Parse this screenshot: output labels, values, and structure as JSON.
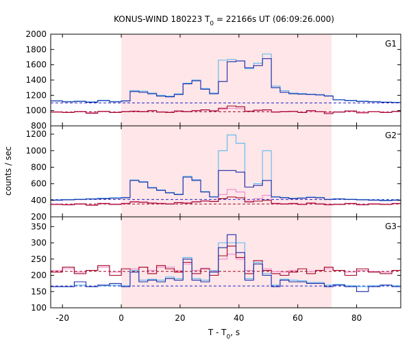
{
  "chart_data": {
    "type": "line",
    "title": "KONUS-WIND 180223 T0 = 22166s UT (06:09:26.000)",
    "title_parts": {
      "prefix": "KONUS-WIND 180223 T",
      "subscript": "0",
      "suffix": " = 22166s UT (06:09:26.000)"
    },
    "xlabel": "T - T0, s",
    "xlabel_parts": {
      "prefix": "T - T",
      "subscript": "0",
      "suffix": ", s"
    },
    "ylabel": "counts / sec",
    "xlim": [
      -24,
      95
    ],
    "x_ticks": [
      -20,
      0,
      20,
      40,
      60,
      80
    ],
    "shaded_interval": {
      "x": [
        0,
        71.5
      ],
      "color": "#ffe6e8"
    },
    "grid": false,
    "colors": {
      "dark_blue": "#1a2aa8",
      "light_blue": "#5bb8ee",
      "dark_red": "#a00020",
      "pink": "#ee88cc",
      "bg_dash_blue": "#2222cc",
      "bg_dash_red": "#a00020"
    },
    "panels": [
      {
        "label": "G1",
        "ylim": [
          800,
          2000
        ],
        "y_ticks": [
          800,
          1000,
          1200,
          1400,
          1600,
          1800,
          2000
        ],
        "background_levels": {
          "blue": 1100,
          "red": 985
        },
        "series": [
          {
            "style": "dark_blue",
            "x": [
              -24,
              -20,
              -16,
              -12,
              -8,
              -4,
              0,
              3,
              6,
              9,
              12,
              15,
              18,
              21,
              24,
              27,
              30,
              33,
              36,
              39,
              42,
              45,
              48,
              51,
              54,
              57,
              60,
              63,
              66,
              69,
              72,
              76,
              80,
              84,
              88,
              92
            ],
            "y": [
              1125,
              1115,
              1120,
              1110,
              1130,
              1115,
              1125,
              1250,
              1240,
              1220,
              1190,
              1180,
              1210,
              1350,
              1390,
              1280,
              1220,
              1380,
              1640,
              1650,
              1560,
              1590,
              1680,
              1300,
              1240,
              1220,
              1215,
              1210,
              1205,
              1190,
              1140,
              1130,
              1120,
              1115,
              1110,
              1105
            ]
          },
          {
            "style": "light_blue",
            "x": [
              -24,
              -20,
              -16,
              -12,
              -8,
              -4,
              0,
              3,
              6,
              9,
              12,
              15,
              18,
              21,
              24,
              27,
              30,
              33,
              36,
              39,
              42,
              45,
              48,
              51,
              54,
              57,
              60,
              63,
              66,
              69,
              72,
              76,
              80,
              84,
              88,
              92
            ],
            "y": [
              1130,
              1120,
              1125,
              1115,
              1135,
              1120,
              1130,
              1260,
              1255,
              1230,
              1200,
              1190,
              1220,
              1360,
              1400,
              1290,
              1230,
              1660,
              1670,
              1650,
              1550,
              1620,
              1740,
              1320,
              1260,
              1230,
              1225,
              1215,
              1210,
              1195,
              1145,
              1135,
              1125,
              1120,
              1112,
              1108
            ]
          },
          {
            "style": "dark_red",
            "x": [
              -24,
              -20,
              -16,
              -12,
              -8,
              -4,
              0,
              3,
              6,
              9,
              12,
              15,
              18,
              21,
              24,
              27,
              30,
              33,
              36,
              39,
              42,
              45,
              48,
              51,
              54,
              57,
              60,
              63,
              66,
              69,
              72,
              76,
              80,
              84,
              88,
              92
            ],
            "y": [
              980,
              975,
              985,
              965,
              990,
              975,
              985,
              990,
              985,
              1000,
              980,
              975,
              995,
              985,
              1000,
              1010,
              995,
              1030,
              1060,
              1050,
              990,
              1005,
              1010,
              980,
              985,
              990,
              975,
              1000,
              985,
              960,
              980,
              995,
              970,
              985,
              975,
              990
            ]
          },
          {
            "style": "pink",
            "x": [
              -24,
              -20,
              -16,
              -12,
              -8,
              -4,
              0,
              3,
              6,
              9,
              12,
              15,
              18,
              21,
              24,
              27,
              30,
              33,
              36,
              39,
              42,
              45,
              48,
              51,
              54,
              57,
              60,
              63,
              66,
              69,
              72,
              76,
              80,
              84,
              88,
              92
            ],
            "y": [
              985,
              980,
              990,
              975,
              985,
              980,
              990,
              995,
              990,
              995,
              985,
              980,
              990,
              990,
              995,
              1005,
              1000,
              1015,
              1030,
              1025,
              995,
              1000,
              1005,
              985,
              990,
              985,
              980,
              990,
              985,
              975,
              985,
              990,
              980,
              985,
              980,
              985
            ]
          }
        ]
      },
      {
        "label": "G2",
        "ylim": [
          200,
          1300
        ],
        "y_ticks": [
          200,
          400,
          600,
          800,
          1000,
          1200
        ],
        "background_levels": {
          "blue": 410,
          "red": 355
        },
        "series": [
          {
            "style": "dark_blue",
            "x": [
              -24,
              -20,
              -16,
              -12,
              -8,
              -4,
              0,
              3,
              6,
              9,
              12,
              15,
              18,
              21,
              24,
              27,
              30,
              33,
              36,
              39,
              42,
              45,
              48,
              51,
              54,
              57,
              60,
              63,
              66,
              69,
              72,
              76,
              80,
              84,
              88,
              92
            ],
            "y": [
              400,
              405,
              410,
              415,
              420,
              425,
              430,
              640,
              620,
              550,
              520,
              490,
              470,
              680,
              640,
              500,
              440,
              760,
              760,
              740,
              560,
              580,
              640,
              440,
              430,
              420,
              425,
              435,
              430,
              410,
              415,
              410,
              405,
              400,
              395,
              400
            ]
          },
          {
            "style": "light_blue",
            "x": [
              -24,
              -20,
              -16,
              -12,
              -8,
              -4,
              0,
              3,
              6,
              9,
              12,
              15,
              18,
              21,
              24,
              27,
              30,
              33,
              36,
              39,
              42,
              45,
              48,
              51,
              54,
              57,
              60,
              63,
              66,
              69,
              72,
              76,
              80,
              84,
              88,
              92
            ],
            "y": [
              405,
              410,
              415,
              420,
              425,
              430,
              435,
              645,
              625,
              555,
              525,
              495,
              475,
              690,
              650,
              505,
              445,
              1000,
              1190,
              1090,
              560,
              600,
              1000,
              445,
              435,
              425,
              430,
              440,
              435,
              415,
              420,
              415,
              410,
              405,
              400,
              405
            ]
          },
          {
            "style": "dark_red",
            "x": [
              -24,
              -20,
              -16,
              -12,
              -8,
              -4,
              0,
              3,
              6,
              9,
              12,
              15,
              18,
              21,
              24,
              27,
              30,
              33,
              36,
              39,
              42,
              45,
              48,
              51,
              54,
              57,
              60,
              63,
              66,
              69,
              72,
              76,
              80,
              84,
              88,
              92
            ],
            "y": [
              350,
              345,
              355,
              340,
              360,
              350,
              360,
              380,
              375,
              365,
              360,
              355,
              370,
              365,
              380,
              390,
              385,
              420,
              440,
              430,
              380,
              390,
              400,
              360,
              355,
              360,
              350,
              365,
              355,
              345,
              350,
              360,
              345,
              355,
              350,
              360
            ]
          },
          {
            "style": "pink",
            "x": [
              -24,
              -20,
              -16,
              -12,
              -8,
              -4,
              0,
              3,
              6,
              9,
              12,
              15,
              18,
              21,
              24,
              27,
              30,
              33,
              36,
              39,
              42,
              45,
              48,
              51,
              54,
              57,
              60,
              63,
              66,
              69,
              72,
              76,
              80,
              84,
              88,
              92
            ],
            "y": [
              355,
              350,
              360,
              345,
              365,
              355,
              365,
              385,
              380,
              370,
              365,
              360,
              375,
              370,
              385,
              395,
              390,
              470,
              530,
              500,
              390,
              420,
              460,
              365,
              360,
              365,
              355,
              370,
              360,
              350,
              355,
              365,
              350,
              360,
              355,
              365
            ]
          }
        ]
      },
      {
        "label": "G3",
        "ylim": [
          100,
          380
        ],
        "y_ticks": [
          100,
          150,
          200,
          250,
          300,
          350
        ],
        "background_levels": {
          "blue": 167,
          "red": 212
        },
        "series": [
          {
            "style": "dark_blue",
            "x": [
              -24,
              -20,
              -16,
              -12,
              -8,
              -4,
              0,
              3,
              6,
              9,
              12,
              15,
              18,
              21,
              24,
              27,
              30,
              33,
              36,
              39,
              42,
              45,
              48,
              51,
              54,
              57,
              60,
              63,
              66,
              69,
              72,
              76,
              80,
              84,
              88,
              92
            ],
            "y": [
              165,
              165,
              180,
              165,
              170,
              175,
              165,
              210,
              180,
              185,
              180,
              190,
              185,
              250,
              185,
              180,
              210,
              285,
              325,
              270,
              185,
              235,
              200,
              165,
              185,
              180,
              180,
              175,
              175,
              165,
              170,
              165,
              150,
              165,
              170,
              165
            ]
          },
          {
            "style": "light_blue",
            "x": [
              -24,
              -20,
              -16,
              -12,
              -8,
              -4,
              0,
              3,
              6,
              9,
              12,
              15,
              18,
              21,
              24,
              27,
              30,
              33,
              36,
              39,
              42,
              45,
              48,
              51,
              54,
              57,
              60,
              63,
              66,
              69,
              72,
              76,
              80,
              84,
              88,
              92
            ],
            "y": [
              165,
              165,
              170,
              165,
              168,
              170,
              168,
              215,
              185,
              188,
              185,
              195,
              190,
              255,
              190,
              185,
              215,
              300,
              300,
              300,
              190,
              240,
              205,
              170,
              188,
              185,
              183,
              178,
              178,
              170,
              172,
              168,
              165,
              168,
              170,
              168
            ]
          },
          {
            "style": "dark_red",
            "x": [
              -24,
              -20,
              -16,
              -12,
              -8,
              -4,
              0,
              3,
              6,
              9,
              12,
              15,
              18,
              21,
              24,
              27,
              30,
              33,
              36,
              39,
              42,
              45,
              48,
              51,
              54,
              57,
              60,
              63,
              66,
              69,
              72,
              76,
              80,
              84,
              88,
              92
            ],
            "y": [
              210,
              225,
              205,
              215,
              230,
              200,
              220,
              215,
              225,
              205,
              230,
              220,
              210,
              240,
              205,
              220,
              200,
              260,
              290,
              255,
              205,
              245,
              215,
              205,
              200,
              210,
              220,
              205,
              215,
              225,
              215,
              200,
              220,
              210,
              205,
              215
            ]
          },
          {
            "style": "pink",
            "x": [
              -24,
              -20,
              -16,
              -12,
              -8,
              -4,
              0,
              3,
              6,
              9,
              12,
              15,
              18,
              21,
              24,
              27,
              30,
              33,
              36,
              39,
              42,
              45,
              48,
              51,
              54,
              57,
              60,
              63,
              66,
              69,
              72,
              76,
              80,
              84,
              88,
              92
            ],
            "y": [
              215,
              220,
              210,
              215,
              225,
              210,
              220,
              220,
              225,
              215,
              225,
              225,
              215,
              235,
              215,
              222,
              212,
              250,
              265,
              250,
              215,
              235,
              220,
              212,
              210,
              215,
              220,
              212,
              215,
              220,
              215,
              210,
              215,
              212,
              210,
              215
            ]
          }
        ]
      }
    ]
  }
}
